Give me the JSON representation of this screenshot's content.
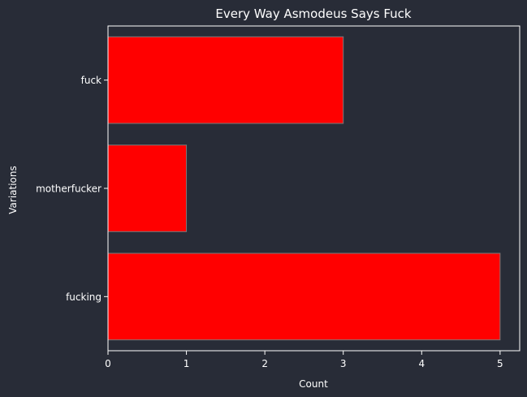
{
  "colors": {
    "background": "#282c37",
    "bar_fill": "#ff0000",
    "bar_edge": "#7a7a7a",
    "axis": "#ffffff",
    "text": "#ffffff"
  },
  "chart_data": {
    "type": "bar",
    "orientation": "horizontal",
    "title": "Every Way Asmodeus Says Fuck",
    "xlabel": "Count",
    "ylabel": "Variations",
    "categories": [
      "fuck",
      "motherfucker",
      "fucking"
    ],
    "values": [
      3,
      1,
      5
    ],
    "xlim": [
      0,
      5.25
    ],
    "xticks": [
      0,
      1,
      2,
      3,
      4,
      5
    ],
    "grid": false,
    "legend": "none"
  }
}
